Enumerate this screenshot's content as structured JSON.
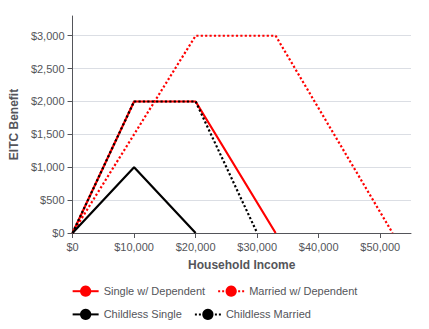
{
  "chart_data": {
    "type": "line",
    "xlabel": "Household Income",
    "ylabel": "EITC Benefit",
    "series": [
      {
        "name": "Single w/ Dependent",
        "color": "#FF0000",
        "line_style": "solid",
        "x": [
          0,
          10000,
          20000,
          33000
        ],
        "values": [
          0,
          2000,
          2000,
          0
        ]
      },
      {
        "name": "Married w/ Dependent",
        "color": "#FF0000",
        "line_style": "dotted",
        "x": [
          0,
          20000,
          33000,
          52000
        ],
        "values": [
          0,
          3000,
          3000,
          0
        ]
      },
      {
        "name": "Childless Single",
        "color": "#000000",
        "line_style": "solid",
        "x": [
          0,
          10000,
          20000
        ],
        "values": [
          0,
          1000,
          0
        ]
      },
      {
        "name": "Childless Married",
        "color": "#000000",
        "line_style": "dotted",
        "x": [
          0,
          10000,
          20000,
          30000
        ],
        "values": [
          0,
          2000,
          2000,
          0
        ]
      }
    ],
    "xlim": [
      0,
      55000
    ],
    "ylim": [
      0,
      3300
    ],
    "xticks": [
      {
        "value": 0,
        "label": "$0"
      },
      {
        "value": 10000,
        "label": "$10,000"
      },
      {
        "value": 20000,
        "label": "$20,000"
      },
      {
        "value": 30000,
        "label": "$30,000"
      },
      {
        "value": 40000,
        "label": "$40,000"
      },
      {
        "value": 50000,
        "label": "$50,000"
      }
    ],
    "yticks": [
      {
        "value": 0,
        "label": "$0"
      },
      {
        "value": 500,
        "label": "$500"
      },
      {
        "value": 1000,
        "label": "$1,000"
      },
      {
        "value": 1500,
        "label": "$1,500"
      },
      {
        "value": 2000,
        "label": "$2,000"
      },
      {
        "value": 2500,
        "label": "$2,500"
      },
      {
        "value": 3000,
        "label": "$3,000"
      }
    ],
    "grid": true,
    "legend": "bottom"
  }
}
